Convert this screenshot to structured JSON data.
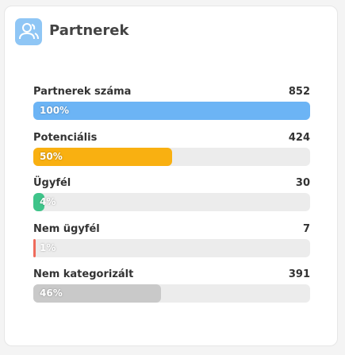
{
  "header": {
    "title": "Partnerek"
  },
  "rows": [
    {
      "label": "Partnerek száma",
      "count": 852,
      "percent": 100,
      "percent_label": "100%",
      "color": "#6cb4f5"
    },
    {
      "label": "Potenciális",
      "count": 424,
      "percent": 50,
      "percent_label": "50%",
      "color": "#f9b011"
    },
    {
      "label": "Ügyfél",
      "count": 30,
      "percent": 4,
      "percent_label": "4%",
      "color": "#3fc48a"
    },
    {
      "label": "Nem ügyfél",
      "count": 7,
      "percent": 1,
      "percent_label": "1%",
      "color": "#ef6b5b"
    },
    {
      "label": "Nem kategorizált",
      "count": 391,
      "percent": 46,
      "percent_label": "46%",
      "color": "#c9c9c9"
    }
  ]
}
